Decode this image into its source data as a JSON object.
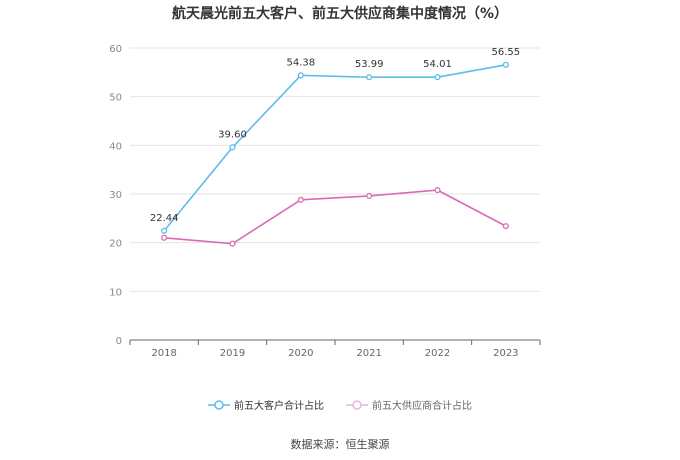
{
  "title": "航天晨光前五大客户、前五大供应商集中度情况（%）",
  "source": "数据来源：恒生聚源",
  "chart_data": {
    "type": "line",
    "title": "航天晨光前五大客户、前五大供应商集中度情况（%）",
    "categories": [
      "2018",
      "2019",
      "2020",
      "2021",
      "2022",
      "2023"
    ],
    "ylim": [
      0,
      60
    ],
    "yticks": [
      0,
      10,
      20,
      30,
      40,
      50,
      60
    ],
    "grid": true,
    "legend_position": "bottom",
    "series": [
      {
        "name": "前五大客户合计占比",
        "color": "#5bbcea",
        "values": [
          22.44,
          39.6,
          54.38,
          53.99,
          54.01,
          56.55
        ],
        "labels": [
          "22.44",
          "39.60",
          "54.38",
          "53.99",
          "54.01",
          "56.55"
        ],
        "show_labels": true
      },
      {
        "name": "前五大供应商合计占比",
        "color": "#d96bb4",
        "values": [
          21.0,
          19.8,
          28.8,
          29.6,
          30.8,
          23.4
        ],
        "show_labels": false
      }
    ]
  }
}
